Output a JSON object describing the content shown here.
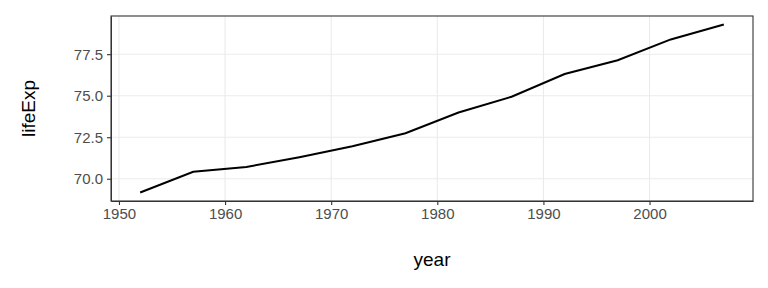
{
  "chart_data": {
    "type": "line",
    "x_label": "year",
    "y_label": "lifeExp",
    "x": [
      1952,
      1957,
      1962,
      1967,
      1972,
      1977,
      1982,
      1987,
      1992,
      1997,
      2002,
      2007
    ],
    "values": [
      69.17,
      70.42,
      70.71,
      71.3,
      71.96,
      72.74,
      73.99,
      74.94,
      76.31,
      77.14,
      78.39,
      79.29
    ],
    "color": "#000000",
    "xlim": [
      1949.25,
      2009.75
    ],
    "ylim": [
      68.66,
      79.8
    ],
    "xticks": [
      1950,
      1960,
      1970,
      1980,
      1990,
      2000
    ],
    "yticks": [
      {
        "value": 70,
        "label": "70.0"
      },
      72.5,
      {
        "value": 75,
        "label": "75.0"
      },
      77.5
    ],
    "grid": true
  }
}
